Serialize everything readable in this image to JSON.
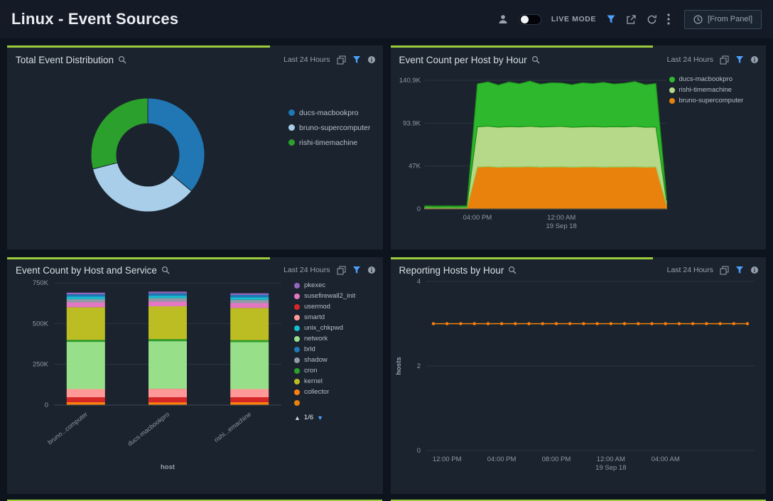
{
  "header": {
    "title": "Linux - Event Sources",
    "live_mode_label": "LIVE MODE",
    "from_panel_label": "[From Panel]"
  },
  "theme": {
    "accent_green": "#9ccb3b",
    "filter_blue": "#4da1ff",
    "panel_bg": "#1b242e",
    "page_bg": "#0e141d"
  },
  "panels": [
    {
      "title": "Total Event Distribution",
      "time_range": "Last 24 Hours"
    },
    {
      "title": "Event Count per Host by Hour",
      "time_range": "Last 24 Hours"
    },
    {
      "title": "Event Count by Host and Service",
      "time_range": "Last 24 Hours",
      "xlabel": "host",
      "pagination": "1/6"
    },
    {
      "title": "Reporting Hosts by Hour",
      "time_range": "Last 24 Hours",
      "ylabel": "hosts"
    }
  ],
  "chart_data": [
    {
      "type": "pie",
      "donut": true,
      "title": "Total Event Distribution",
      "labels": [
        "ducs-macbookpro",
        "bruno-supercomputer",
        "rishi-timemachine"
      ],
      "values": [
        36,
        35,
        29
      ],
      "colors": [
        "#2077b4",
        "#a8cee9",
        "#2ca02c"
      ],
      "legend": [
        {
          "label": "ducs-macbookpro",
          "color": "#2077b4"
        },
        {
          "label": "bruno-supercomputer",
          "color": "#a8cee9"
        },
        {
          "label": "rishi-timemachine",
          "color": "#2ca02c"
        }
      ]
    },
    {
      "type": "area",
      "stacked": true,
      "title": "Event Count per Host by Hour",
      "ylim": [
        0,
        148000
      ],
      "yticks": [
        {
          "value": 0,
          "label": "0"
        },
        {
          "value": 47000,
          "label": "47K"
        },
        {
          "value": 93900,
          "label": "93.9K"
        },
        {
          "value": 140900,
          "label": "140.9K"
        }
      ],
      "xticks": [
        {
          "index": 5,
          "label": "04:00 PM"
        },
        {
          "index": 13,
          "label": "12:00 AM",
          "sublabel": "19 Sep 18"
        }
      ],
      "series": [
        {
          "name": "bruno-supercomputer",
          "color": "#e8820c",
          "edge": "#ff9f1a",
          "values": [
            1200,
            1100,
            1150,
            1100,
            1200,
            46000,
            46500,
            45800,
            46200,
            46000,
            46400,
            45900,
            46100,
            46300,
            45800,
            46000,
            46200,
            45900,
            46100,
            46000,
            46300,
            45800,
            46000,
            5000
          ]
        },
        {
          "name": "rishi-timemachine",
          "color": "#b5d989",
          "edge": "#8fce5a",
          "values": [
            900,
            850,
            900,
            880,
            900,
            44000,
            44300,
            43800,
            44100,
            44000,
            44200,
            43900,
            44000,
            44200,
            43800,
            44000,
            44100,
            43900,
            44000,
            44000,
            44200,
            43800,
            43900,
            4200
          ]
        },
        {
          "name": "ducs-macbookpro",
          "color": "#2eb82e",
          "edge": "#1d8f17",
          "values": [
            1300,
            1250,
            1300,
            1280,
            1300,
            47000,
            48500,
            46200,
            48800,
            47200,
            49500,
            46800,
            48200,
            47500,
            46500,
            48300,
            47100,
            49000,
            46800,
            47800,
            49200,
            46500,
            47500,
            4600
          ]
        }
      ],
      "legend": [
        {
          "label": "ducs-macbookpro",
          "color": "#2eb82e"
        },
        {
          "label": "rishi-timemachine",
          "color": "#b5d989"
        },
        {
          "label": "bruno-supercomputer",
          "color": "#e8820c"
        }
      ]
    },
    {
      "type": "bar",
      "stacked": true,
      "title": "Event Count by Host and Service",
      "categories": [
        "bruno...computer",
        "ducs-macbookpro",
        "rishi...emachine"
      ],
      "xlabel": "host",
      "ylim": [
        0,
        750000
      ],
      "ytick_labels": [
        "0",
        "250K",
        "500K",
        "750K"
      ],
      "ytick_values": [
        0,
        250000,
        500000,
        750000
      ],
      "pagination": "1/6",
      "series": [
        {
          "name": "collector",
          "color": "#ff7f0e",
          "values": [
            18000,
            17000,
            18000
          ]
        },
        {
          "name": "usermod",
          "color": "#d62728",
          "values": [
            30000,
            31000,
            30000
          ]
        },
        {
          "name": "smartd",
          "color": "#ff9896",
          "values": [
            50000,
            52000,
            50000
          ]
        },
        {
          "name": "network",
          "color": "#98df8a",
          "values": [
            290000,
            292000,
            288000
          ]
        },
        {
          "name": "cron",
          "color": "#2ca02c",
          "values": [
            12000,
            12000,
            12000
          ]
        },
        {
          "name": "kernel",
          "color": "#bcbd22",
          "values": [
            200000,
            202000,
            198000
          ]
        },
        {
          "name": "susefirewall2_init",
          "color": "#e377c2",
          "values": [
            30000,
            30000,
            30000
          ]
        },
        {
          "name": "shadow",
          "color": "#8f9aa6",
          "values": [
            20000,
            20000,
            20000
          ]
        },
        {
          "name": "unix_chkpwd",
          "color": "#17becf",
          "values": [
            15000,
            15000,
            15000
          ]
        },
        {
          "name": "brld",
          "color": "#1f77b4",
          "values": [
            15000,
            15000,
            15000
          ]
        },
        {
          "name": "pkexec",
          "color": "#9467bd",
          "values": [
            10000,
            10000,
            10000
          ]
        }
      ],
      "legend": [
        {
          "label": "pkexec",
          "color": "#9467bd"
        },
        {
          "label": "susefirewall2_init",
          "color": "#e377c2"
        },
        {
          "label": "usermod",
          "color": "#d62728"
        },
        {
          "label": "smartd",
          "color": "#ff9896"
        },
        {
          "label": "unix_chkpwd",
          "color": "#17becf"
        },
        {
          "label": "network",
          "color": "#98df8a"
        },
        {
          "label": "brld",
          "color": "#1f77b4"
        },
        {
          "label": "shadow",
          "color": "#8f9aa6"
        },
        {
          "label": "cron",
          "color": "#2ca02c"
        },
        {
          "label": "kernel",
          "color": "#bcbd22"
        },
        {
          "label": "collector",
          "color": "#ff7f0e"
        },
        {
          "label": "",
          "color": "#e8820c"
        }
      ]
    },
    {
      "type": "line",
      "title": "Reporting Hosts by Hour",
      "ylabel": "hosts",
      "ylim": [
        0,
        4
      ],
      "yticks": [
        0,
        2,
        4
      ],
      "color": "#e8820c",
      "values": [
        3,
        3,
        3,
        3,
        3,
        3,
        3,
        3,
        3,
        3,
        3,
        3,
        3,
        3,
        3,
        3,
        3,
        3,
        3,
        3,
        3,
        3,
        3,
        3
      ],
      "xticks": [
        {
          "index": 1,
          "label": "12:00 PM"
        },
        {
          "index": 5,
          "label": "04:00 PM"
        },
        {
          "index": 9,
          "label": "08:00 PM"
        },
        {
          "index": 13,
          "label": "12:00 AM",
          "sublabel": "19 Sep 18"
        },
        {
          "index": 17,
          "label": "04:00 AM"
        }
      ]
    }
  ]
}
